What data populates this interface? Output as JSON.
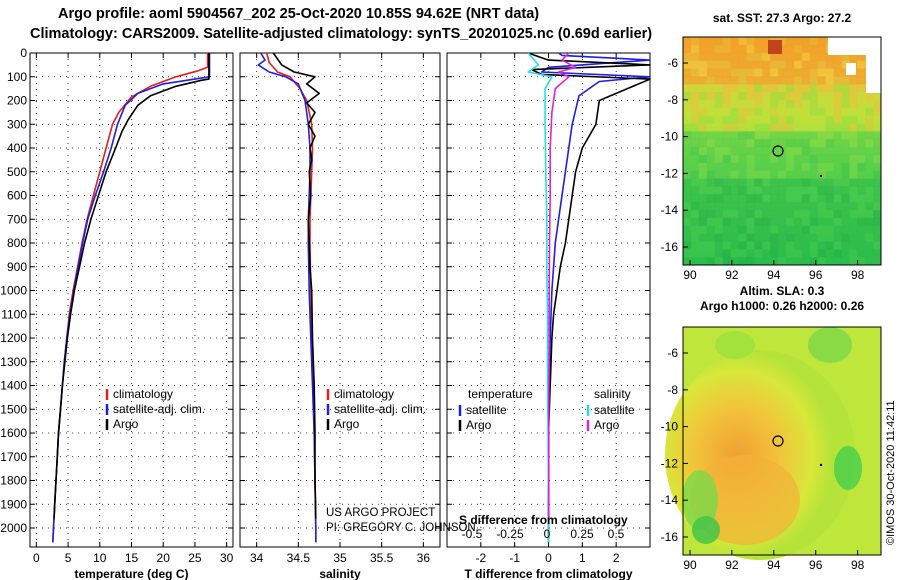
{
  "header": {
    "title_line1": "Argo profile: aoml 5904567_202 25-Oct-2020 10.85S 94.62E (NRT data)",
    "title_line2": "Climatology: CARS2009. Satellite-adjusted climatology: synTS_20201025.nc (0.69d earlier)"
  },
  "colors": {
    "climatology": "#e11f1f",
    "satellite": "#1f1fe0",
    "argo": "#000000",
    "sat_salinity": "#22e0e0",
    "argo_salinity_diff": "#e020e0"
  },
  "chart_data": [
    {
      "type": "line",
      "name": "temperature",
      "xlabel": "temperature (deg C)",
      "xlim": [
        -1,
        31
      ],
      "ylim": [
        2080,
        0
      ],
      "xticks": [
        0,
        5,
        10,
        15,
        20,
        25,
        30
      ],
      "yticks": [
        0,
        100,
        200,
        300,
        400,
        500,
        600,
        700,
        800,
        900,
        1000,
        1100,
        1200,
        1300,
        1400,
        1500,
        1600,
        1700,
        1800,
        1900,
        2000
      ],
      "legend": [
        "climatology",
        "satellite-adj. clim.",
        "Argo"
      ],
      "series": [
        {
          "name": "climatology",
          "color": "#e11f1f",
          "points": [
            [
              27.0,
              0
            ],
            [
              27.0,
              60
            ],
            [
              25.5,
              75
            ],
            [
              22,
              100
            ],
            [
              18,
              140
            ],
            [
              15,
              185
            ],
            [
              13,
              250
            ],
            [
              12,
              300
            ],
            [
              11,
              400
            ],
            [
              10,
              500
            ],
            [
              9,
              600
            ],
            [
              8,
              700
            ],
            [
              7.2,
              800
            ],
            [
              6.5,
              900
            ],
            [
              5.8,
              1000
            ],
            [
              5.2,
              1100
            ],
            [
              4.8,
              1200
            ],
            [
              4.4,
              1300
            ],
            [
              4.1,
              1400
            ],
            [
              3.8,
              1500
            ],
            [
              3.5,
              1600
            ],
            [
              3.3,
              1700
            ],
            [
              3.1,
              1800
            ],
            [
              2.9,
              1900
            ],
            [
              2.7,
              2000
            ],
            [
              2.6,
              2060
            ]
          ]
        },
        {
          "name": "satellite-adj. clim.",
          "color": "#1f1fe0",
          "points": [
            [
              27.3,
              0
            ],
            [
              27.3,
              100
            ],
            [
              25,
              110
            ],
            [
              20,
              130
            ],
            [
              16,
              170
            ],
            [
              14,
              220
            ],
            [
              12.8,
              300
            ],
            [
              11.8,
              400
            ],
            [
              10.6,
              500
            ],
            [
              9.3,
              600
            ],
            [
              8.1,
              700
            ],
            [
              7.3,
              800
            ],
            [
              6.6,
              900
            ],
            [
              5.9,
              1000
            ],
            [
              5.3,
              1100
            ],
            [
              4.8,
              1200
            ],
            [
              4.4,
              1300
            ],
            [
              4.1,
              1400
            ],
            [
              3.8,
              1500
            ],
            [
              3.5,
              1600
            ],
            [
              3.3,
              1700
            ],
            [
              3.1,
              1800
            ],
            [
              2.9,
              1900
            ],
            [
              2.7,
              2000
            ],
            [
              2.6,
              2060
            ]
          ]
        },
        {
          "name": "Argo",
          "color": "#000000",
          "points": [
            [
              27.2,
              0
            ],
            [
              27.2,
              110
            ],
            [
              26,
              115
            ],
            [
              22,
              140
            ],
            [
              18,
              180
            ],
            [
              16,
              220
            ],
            [
              14.5,
              280
            ],
            [
              13.5,
              330
            ],
            [
              12.5,
              400
            ],
            [
              11,
              500
            ],
            [
              9.8,
              600
            ],
            [
              8.6,
              700
            ],
            [
              7.6,
              800
            ],
            [
              6.8,
              900
            ],
            [
              6.0,
              1000
            ],
            [
              5.4,
              1100
            ],
            [
              4.9,
              1200
            ],
            [
              4.5,
              1300
            ],
            [
              4.1,
              1400
            ],
            [
              3.8,
              1500
            ],
            [
              3.5,
              1600
            ],
            [
              3.3,
              1700
            ],
            [
              3.1,
              1800
            ],
            [
              2.9,
              1900
            ],
            [
              2.8,
              1960
            ]
          ]
        }
      ]
    },
    {
      "type": "line",
      "name": "salinity",
      "xlabel": "salinity",
      "xlim": [
        33.8,
        36.2
      ],
      "ylim": [
        2080,
        0
      ],
      "xticks": [
        34,
        34.5,
        35,
        35.5,
        36
      ],
      "legend": [
        "climatology",
        "satellite-adj. clim.",
        "Argo"
      ],
      "annotations": [
        "US ARGO PROJECT",
        "PI: GREGORY C. JOHNSON"
      ],
      "series": [
        {
          "name": "climatology",
          "color": "#e11f1f",
          "points": [
            [
              34.12,
              0
            ],
            [
              34.15,
              40
            ],
            [
              34.25,
              80
            ],
            [
              34.4,
              100
            ],
            [
              34.52,
              150
            ],
            [
              34.6,
              200
            ],
            [
              34.66,
              300
            ],
            [
              34.67,
              400
            ],
            [
              34.66,
              500
            ],
            [
              34.65,
              600
            ],
            [
              34.64,
              700
            ],
            [
              34.64,
              800
            ],
            [
              34.65,
              1000
            ],
            [
              34.66,
              1200
            ],
            [
              34.68,
              1400
            ],
            [
              34.69,
              1600
            ],
            [
              34.7,
              1800
            ],
            [
              34.71,
              2000
            ],
            [
              34.71,
              2060
            ]
          ]
        },
        {
          "name": "satellite-adj. clim.",
          "color": "#1f1fe0",
          "points": [
            [
              34.05,
              0
            ],
            [
              34.1,
              30
            ],
            [
              34.02,
              50
            ],
            [
              34.15,
              80
            ],
            [
              34.35,
              100
            ],
            [
              34.5,
              130
            ],
            [
              34.58,
              200
            ],
            [
              34.62,
              300
            ],
            [
              34.64,
              400
            ],
            [
              34.64,
              500
            ],
            [
              34.63,
              600
            ],
            [
              34.62,
              700
            ],
            [
              34.62,
              800
            ],
            [
              34.63,
              1000
            ],
            [
              34.65,
              1200
            ],
            [
              34.67,
              1400
            ],
            [
              34.69,
              1600
            ],
            [
              34.7,
              1800
            ],
            [
              34.71,
              2000
            ],
            [
              34.71,
              2060
            ]
          ]
        },
        {
          "name": "Argo",
          "color": "#000000",
          "points": [
            [
              34.2,
              0
            ],
            [
              34.3,
              50
            ],
            [
              34.45,
              80
            ],
            [
              34.7,
              100
            ],
            [
              34.6,
              130
            ],
            [
              34.75,
              170
            ],
            [
              34.6,
              210
            ],
            [
              34.7,
              250
            ],
            [
              34.62,
              300
            ],
            [
              34.7,
              350
            ],
            [
              34.64,
              400
            ],
            [
              34.66,
              450
            ],
            [
              34.63,
              500
            ],
            [
              34.65,
              600
            ],
            [
              34.62,
              700
            ],
            [
              34.63,
              800
            ],
            [
              34.64,
              900
            ],
            [
              34.66,
              1000
            ],
            [
              34.67,
              1200
            ],
            [
              34.69,
              1400
            ],
            [
              34.7,
              1600
            ],
            [
              34.7,
              1800
            ],
            [
              34.71,
              1960
            ]
          ]
        }
      ]
    },
    {
      "type": "line",
      "name": "difference",
      "xlabel": "T difference from climatology",
      "xlabel_top": "S difference from climatology",
      "xlim": [
        -3,
        3
      ],
      "ylim": [
        2080,
        0
      ],
      "xticks": [
        -2,
        -1,
        0,
        1,
        2
      ],
      "xticks_top": [
        "-0.5",
        "-0.25",
        "0",
        "0.25",
        "0.5"
      ],
      "legend_temperature_title": "temperature",
      "legend_salinity_title": "salinity",
      "legend_temperature": [
        "satellite",
        "Argo"
      ],
      "legend_salinity": [
        "satellite",
        "Argo"
      ],
      "series": [
        {
          "name": "T satellite",
          "color": "#1f1fe0",
          "points": [
            [
              0.3,
              0
            ],
            [
              0.4,
              10
            ],
            [
              3,
              30
            ],
            [
              0,
              60
            ],
            [
              -0.2,
              80
            ],
            [
              3,
              100
            ],
            [
              1.5,
              120
            ],
            [
              0.9,
              180
            ],
            [
              0.7,
              300
            ],
            [
              0.6,
              400
            ],
            [
              0.5,
              500
            ],
            [
              0.3,
              700
            ],
            [
              0.2,
              800
            ],
            [
              0.1,
              1000
            ],
            [
              0.05,
              1200
            ],
            [
              0,
              1500
            ],
            [
              0,
              1800
            ],
            [
              0,
              2060
            ]
          ]
        },
        {
          "name": "T Argo",
          "color": "#000000",
          "points": [
            [
              -0.6,
              0
            ],
            [
              0,
              30
            ],
            [
              3,
              50
            ],
            [
              -0.5,
              70
            ],
            [
              -0.2,
              90
            ],
            [
              3,
              110
            ],
            [
              1.5,
              200
            ],
            [
              1.4,
              300
            ],
            [
              1.0,
              400
            ],
            [
              0.8,
              500
            ],
            [
              0.7,
              600
            ],
            [
              0.6,
              700
            ],
            [
              0.5,
              800
            ],
            [
              0.35,
              900
            ],
            [
              0.25,
              1000
            ],
            [
              0.15,
              1100
            ],
            [
              0.1,
              1200
            ],
            [
              0.05,
              1400
            ],
            [
              0,
              1600
            ],
            [
              0,
              1800
            ],
            [
              0,
              1960
            ]
          ]
        },
        {
          "name": "S satellite",
          "color": "#22e0e0",
          "points": [
            [
              -0.6,
              0
            ],
            [
              -0.3,
              50
            ],
            [
              -0.6,
              80
            ],
            [
              0.1,
              100
            ],
            [
              -0.1,
              150
            ],
            [
              -0.1,
              300
            ],
            [
              -0.08,
              500
            ],
            [
              -0.05,
              700
            ],
            [
              -0.05,
              900
            ],
            [
              -0.03,
              1100
            ],
            [
              -0.03,
              1300
            ],
            [
              -0.02,
              1500
            ],
            [
              -0.01,
              1700
            ],
            [
              0,
              1900
            ],
            [
              0,
              2060
            ]
          ]
        },
        {
          "name": "S Argo",
          "color": "#e020e0",
          "points": [
            [
              0.6,
              0
            ],
            [
              0.4,
              30
            ],
            [
              0.8,
              60
            ],
            [
              0.3,
              80
            ],
            [
              0.6,
              100
            ],
            [
              0.2,
              150
            ],
            [
              0.1,
              250
            ],
            [
              0.05,
              400
            ],
            [
              0.05,
              600
            ],
            [
              0.03,
              800
            ],
            [
              0.02,
              1000
            ],
            [
              0.02,
              1200
            ],
            [
              0.01,
              1500
            ],
            [
              0.01,
              1800
            ],
            [
              0.01,
              1960
            ]
          ]
        }
      ]
    },
    {
      "type": "heatmap",
      "name": "sst-map",
      "title": "sat. SST: 27.3 Argo: 27.2",
      "xticks": [
        "90",
        "92",
        "94",
        "96",
        "98"
      ],
      "yticks": [
        "-6",
        "-8",
        "-10",
        "-12",
        "-14",
        "-16"
      ]
    },
    {
      "type": "heatmap",
      "name": "sla-map",
      "title_line1": "Altim. SLA: 0.3",
      "title_line2": "Argo h1000: 0.26 h2000: 0.26",
      "xticks": [
        "90",
        "92",
        "94",
        "96",
        "98"
      ],
      "yticks": [
        "-6",
        "-8",
        "-10",
        "-12",
        "-14",
        "-16"
      ],
      "watermark": "©IMOS 30-Oct-2020 11:42:11"
    }
  ]
}
